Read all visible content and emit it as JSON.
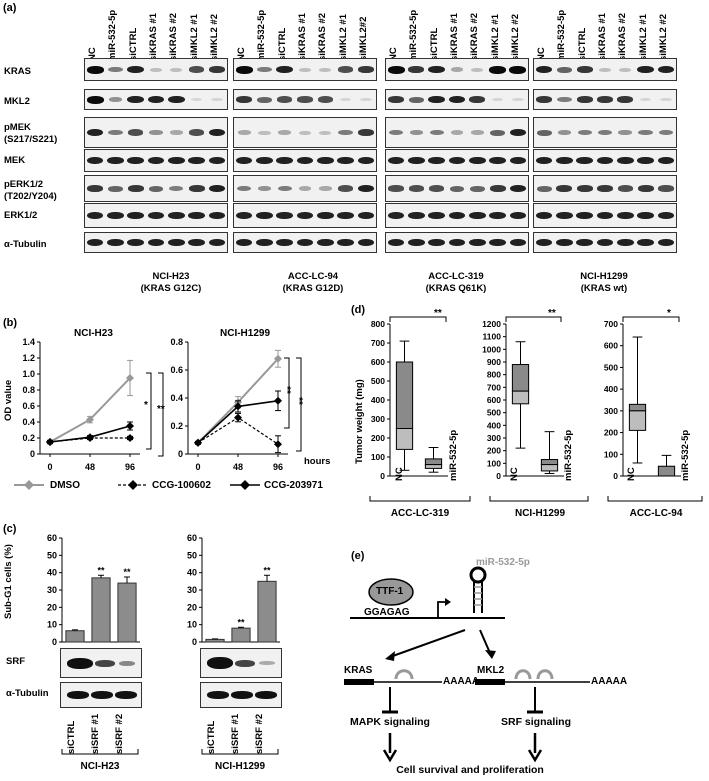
{
  "panel_a": {
    "label": "(a)",
    "lane_labels": [
      "NC",
      "miR-532-5p",
      "siCTRL",
      "siKRAS #1",
      "siKRAS #2",
      "siMKL2 #1",
      "siMKL2 #2"
    ],
    "lane_labels_g2": [
      "NC",
      "miR-532-5p",
      "siCTRL",
      "siKRAS #1",
      "siKRAS #2",
      "siMKL2 #1",
      "siMKL2#2"
    ],
    "row_labels": [
      "KRAS",
      "MKL2",
      "pMEK",
      "(S217/S221)",
      "MEK",
      "pERK1/2",
      "(T202/Y204)",
      "ERK1/2",
      "α-Tubulin"
    ],
    "groups": [
      {
        "line1": "NCI-H23",
        "line2": "(KRAS G12C)"
      },
      {
        "line1": "ACC-LC-94",
        "line2": "(KRAS G12D)"
      },
      {
        "line1": "ACC-LC-319",
        "line2": "(KRAS Q61K)"
      },
      {
        "line1": "NCI-H1299",
        "line2": "(KRAS wt)"
      }
    ]
  },
  "panel_b": {
    "label": "(b)",
    "ylabel": "OD value",
    "xunit": "hours",
    "legend": [
      "DMSO",
      "CCG-100602",
      "CCG-203971"
    ],
    "sig1": "*",
    "sig2": "**",
    "sig3": "**",
    "sig4": "**"
  },
  "panel_c": {
    "label": "(c)",
    "ylabel": "Sub-G1 cells (%)",
    "row_labels": [
      "SRF",
      "α-Tubulin"
    ],
    "stars": "**"
  },
  "panel_d": {
    "label": "(d)",
    "ylabel": "Tumor weight (mg)",
    "sig1": "**",
    "sig2": "**",
    "sig3": "*"
  },
  "panel_e": {
    "label": "(e)",
    "ttf1": "TTF-1",
    "promoter": "GGAGAG",
    "mirna": "miR-532-5p",
    "kras": "KRAS",
    "mkl2": "MKL2",
    "polya1": "AAAAA",
    "polya2": "AAAAA",
    "mapk": "MAPK signaling",
    "srf": "SRF signaling",
    "outcome": "Cell survival and proliferation"
  },
  "colors": {
    "dmso": "#999999",
    "treat": "#000000",
    "bar": "#8c8c8c",
    "box": "#bdbdbd",
    "mirna": "#9a9a9a"
  },
  "chart_data": [
    {
      "type": "line",
      "title": "NCI-H23",
      "xlabel": "hours",
      "ylabel": "OD value",
      "x": [
        0,
        48,
        96
      ],
      "ylim": [
        0,
        1.4
      ],
      "yticks": [
        0,
        0.2,
        0.4,
        0.6,
        0.8,
        1.0,
        1.2,
        1.4
      ],
      "series": [
        {
          "name": "DMSO",
          "values": [
            0.15,
            0.43,
            0.95
          ],
          "err": [
            0.02,
            0.04,
            0.22
          ]
        },
        {
          "name": "CCG-100602",
          "values": [
            0.15,
            0.2,
            0.2
          ],
          "err": [
            0.02,
            0.02,
            0.02
          ]
        },
        {
          "name": "CCG-203971",
          "values": [
            0.15,
            0.21,
            0.35
          ],
          "err": [
            0.02,
            0.02,
            0.05
          ]
        }
      ]
    },
    {
      "type": "line",
      "title": "NCI-H1299",
      "xlabel": "hours",
      "ylabel": "OD value",
      "x": [
        0,
        48,
        96
      ],
      "ylim": [
        0,
        0.8
      ],
      "yticks": [
        0,
        0.2,
        0.4,
        0.6,
        0.8
      ],
      "series": [
        {
          "name": "DMSO",
          "values": [
            0.08,
            0.37,
            0.68
          ],
          "err": [
            0.01,
            0.04,
            0.06
          ]
        },
        {
          "name": "CCG-100602",
          "values": [
            0.08,
            0.26,
            0.07
          ],
          "err": [
            0.01,
            0.03,
            0.06
          ]
        },
        {
          "name": "CCG-203971",
          "values": [
            0.08,
            0.34,
            0.38
          ],
          "err": [
            0.01,
            0.04,
            0.07
          ]
        }
      ]
    },
    {
      "type": "bar",
      "title": "NCI-H23",
      "ylabel": "Sub-G1 cells (%)",
      "ylim": [
        0,
        60
      ],
      "yticks": [
        0,
        10,
        20,
        30,
        40,
        50,
        60
      ],
      "categories": [
        "siCTRL",
        "siSRF #1",
        "siSRF #2"
      ],
      "values": [
        6.5,
        37,
        34
      ],
      "err": [
        0.5,
        1.5,
        3.5
      ],
      "sig": [
        "",
        "**",
        "**"
      ]
    },
    {
      "type": "bar",
      "title": "NCI-H1299",
      "ylabel": "Sub-G1 cells (%)",
      "ylim": [
        0,
        60
      ],
      "yticks": [
        0,
        10,
        20,
        30,
        40,
        50,
        60
      ],
      "categories": [
        "siCTRL",
        "siSRF #1",
        "siSRF #2"
      ],
      "values": [
        1.5,
        8,
        35
      ],
      "err": [
        0.3,
        0.5,
        3.5
      ],
      "sig": [
        "",
        "**",
        "**"
      ]
    },
    {
      "type": "box",
      "title": "ACC-LC-319",
      "ylabel": "Tumor weight (mg)",
      "ylim": [
        0,
        800
      ],
      "yticks": [
        0,
        100,
        200,
        300,
        400,
        500,
        600,
        700,
        800
      ],
      "categories": [
        "NC",
        "miR-532-5p"
      ],
      "boxes": [
        {
          "min": 30,
          "q1": 140,
          "median": 250,
          "q3": 600,
          "max": 710
        },
        {
          "min": 20,
          "q1": 40,
          "median": 60,
          "q3": 90,
          "max": 150
        }
      ]
    },
    {
      "type": "box",
      "title": "NCI-H1299",
      "ylabel": "",
      "ylim": [
        0,
        1200
      ],
      "yticks": [
        0,
        100,
        200,
        300,
        400,
        500,
        600,
        700,
        800,
        900,
        1000,
        1100,
        1200
      ],
      "categories": [
        "NC",
        "miR-532-5p"
      ],
      "boxes": [
        {
          "min": 220,
          "q1": 570,
          "median": 670,
          "q3": 880,
          "max": 1060
        },
        {
          "min": 20,
          "q1": 40,
          "median": 90,
          "q3": 130,
          "max": 350
        }
      ]
    },
    {
      "type": "box",
      "title": "ACC-LC-94",
      "ylabel": "",
      "ylim": [
        0,
        700
      ],
      "yticks": [
        0,
        100,
        200,
        300,
        400,
        500,
        600,
        700
      ],
      "categories": [
        "NC",
        "miR-532-5p"
      ],
      "boxes": [
        {
          "min": 60,
          "q1": 210,
          "median": 300,
          "q3": 330,
          "max": 640
        },
        {
          "min": 0,
          "q1": 0,
          "median": 0,
          "q3": 45,
          "max": 95
        }
      ]
    }
  ]
}
